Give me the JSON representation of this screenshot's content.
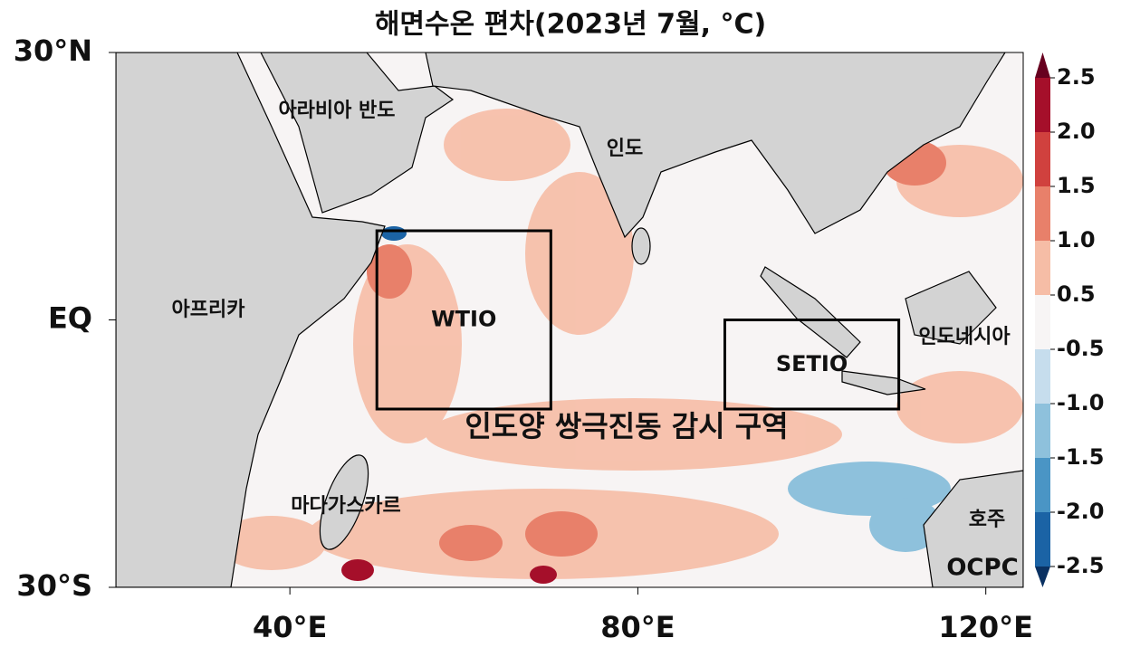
{
  "title": "해면수온 편차(2023년 7월, °C)",
  "map": {
    "lonlim": [
      20,
      124.3
    ],
    "latlim": [
      -30,
      30
    ],
    "lat_ticks": [
      {
        "value": 30,
        "label": "30°N"
      },
      {
        "value": 0,
        "label": "EQ"
      },
      {
        "value": -30,
        "label": "30°S"
      }
    ],
    "lon_ticks": [
      {
        "value": 40,
        "label": "40°E"
      },
      {
        "value": 80,
        "label": "80°E"
      },
      {
        "value": 120,
        "label": "120°E"
      }
    ],
    "regions": [
      "아라비아 반도",
      "인도",
      "아프리카",
      "인도네시아",
      "마다가스카르",
      "호주"
    ],
    "boxes": [
      {
        "label": "WTIO",
        "lon": [
          50,
          70
        ],
        "lat": [
          -10,
          10
        ]
      },
      {
        "label": "SETIO",
        "lon": [
          90,
          110
        ],
        "lat": [
          -10,
          0
        ]
      }
    ],
    "annotation": "인도양 쌍극진동 감시 구역",
    "logo": "OCPC"
  },
  "colorbar": {
    "colors": [
      "#67001f",
      "#a50f2a",
      "#d0413e",
      "#e8806a",
      "#f6bda6",
      "#f7f5f5",
      "#c6dded",
      "#8ec1dc",
      "#4a95c5",
      "#1b63a5",
      "#0a3162"
    ],
    "ticks": [
      {
        "value": 2.5,
        "label": "2.5"
      },
      {
        "value": 2,
        "label": "2.0"
      },
      {
        "value": 1.5,
        "label": "1.5"
      },
      {
        "value": 1,
        "label": "1.0"
      },
      {
        "value": 0.5,
        "label": "0.5"
      },
      {
        "value": -0.5,
        "label": "-0.5"
      },
      {
        "value": -1,
        "label": "-1.0"
      },
      {
        "value": -1.5,
        "label": "-1.5"
      },
      {
        "value": -2,
        "label": "-2.0"
      },
      {
        "value": -2.5,
        "label": "-2.5"
      }
    ]
  }
}
